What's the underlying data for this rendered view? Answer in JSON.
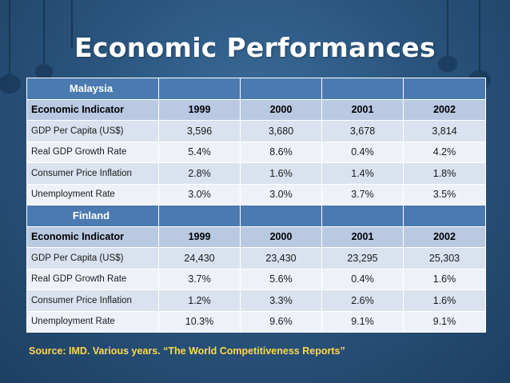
{
  "title": "Economic Performances",
  "sections": [
    {
      "country": "Malaysia",
      "header": [
        "Economic Indicator",
        "1999",
        "2000",
        "2001",
        "2002"
      ],
      "rows": [
        [
          "GDP Per Capita (US$)",
          "3,596",
          "3,680",
          "3,678",
          "3,814"
        ],
        [
          "Real GDP Growth Rate",
          "5.4%",
          "8.6%",
          "0.4%",
          "4.2%"
        ],
        [
          "Consumer Price Inflation",
          "2.8%",
          "1.6%",
          "1.4%",
          "1.8%"
        ],
        [
          "Unemployment Rate",
          "3.0%",
          "3.0%",
          "3.7%",
          "3.5%"
        ]
      ]
    },
    {
      "country": "Finland",
      "header": [
        "Economic Indicator",
        "1999",
        "2000",
        "2001",
        "2002"
      ],
      "rows": [
        [
          "GDP Per Capita (US$)",
          "24,430",
          "23,430",
          "23,295",
          "25,303"
        ],
        [
          "Real GDP Growth Rate",
          "3.7%",
          "5.6%",
          "0.4%",
          "1.6%"
        ],
        [
          "Consumer Price Inflation",
          "1.2%",
          "3.3%",
          "2.6%",
          "1.6%"
        ],
        [
          "Unemployment Rate",
          "10.3%",
          "9.6%",
          "9.1%",
          "9.1%"
        ]
      ]
    }
  ],
  "source": "Source: IMD. Various years. “The World Competitiveness Reports”"
}
